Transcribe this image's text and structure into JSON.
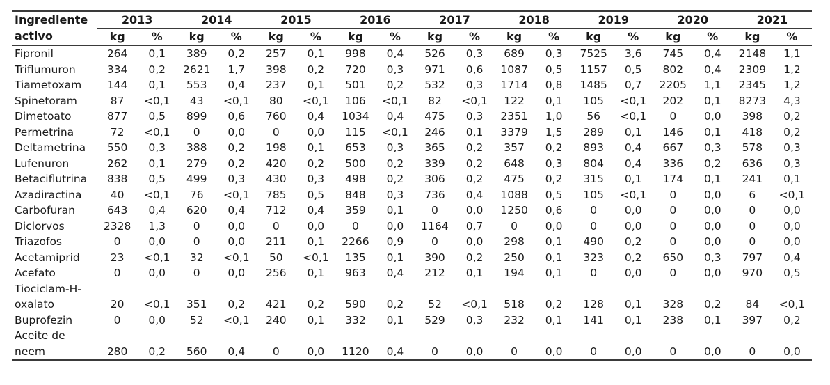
{
  "colors": {
    "background": "#ffffff",
    "text": "#1a1a1a",
    "rule": "#3a3a3a"
  },
  "chart_data": {
    "type": "table",
    "header": {
      "col1_line1": "Ingrediente",
      "col1_line2": "activo",
      "years": [
        "2013",
        "2014",
        "2015",
        "2016",
        "2017",
        "2018",
        "2019",
        "2020",
        "2021"
      ],
      "unit_kg": "kg",
      "unit_pct": "%"
    },
    "layout": {
      "gridlines": "horizontal-rules-only",
      "value_format": "comma-decimal",
      "columns_per_year": [
        "kg",
        "%"
      ]
    },
    "rows": [
      {
        "name": "Fipronil",
        "values": [
          "264",
          "0,1",
          "389",
          "0,2",
          "257",
          "0,1",
          "998",
          "0,4",
          "526",
          "0,3",
          "689",
          "0,3",
          "7525",
          "3,6",
          "745",
          "0,4",
          "2148",
          "1,1"
        ]
      },
      {
        "name": "Triflumuron",
        "values": [
          "334",
          "0,2",
          "2621",
          "1,7",
          "398",
          "0,2",
          "720",
          "0,3",
          "971",
          "0,6",
          "1087",
          "0,5",
          "1157",
          "0,5",
          "802",
          "0,4",
          "2309",
          "1,2"
        ]
      },
      {
        "name": "Tiametoxam",
        "values": [
          "144",
          "0,1",
          "553",
          "0,4",
          "237",
          "0,1",
          "501",
          "0,2",
          "532",
          "0,3",
          "1714",
          "0,8",
          "1485",
          "0,7",
          "2205",
          "1,1",
          "2345",
          "1,2"
        ]
      },
      {
        "name": "Spinetoram",
        "values": [
          "87",
          "<0,1",
          "43",
          "<0,1",
          "80",
          "<0,1",
          "106",
          "<0,1",
          "82",
          "<0,1",
          "122",
          "0,1",
          "105",
          "<0,1",
          "202",
          "0,1",
          "8273",
          "4,3"
        ]
      },
      {
        "name": "Dimetoato",
        "values": [
          "877",
          "0,5",
          "899",
          "0,6",
          "760",
          "0,4",
          "1034",
          "0,4",
          "475",
          "0,3",
          "2351",
          "1,0",
          "56",
          "<0,1",
          "0",
          "0,0",
          "398",
          "0,2"
        ]
      },
      {
        "name": "Permetrina",
        "values": [
          "72",
          "<0,1",
          "0",
          "0,0",
          "0",
          "0,0",
          "115",
          "<0,1",
          "246",
          "0,1",
          "3379",
          "1,5",
          "289",
          "0,1",
          "146",
          "0,1",
          "418",
          "0,2"
        ]
      },
      {
        "name": "Deltametrina",
        "values": [
          "550",
          "0,3",
          "388",
          "0,2",
          "198",
          "0,1",
          "653",
          "0,3",
          "365",
          "0,2",
          "357",
          "0,2",
          "893",
          "0,4",
          "667",
          "0,3",
          "578",
          "0,3"
        ]
      },
      {
        "name": "Lufenuron",
        "values": [
          "262",
          "0,1",
          "279",
          "0,2",
          "420",
          "0,2",
          "500",
          "0,2",
          "339",
          "0,2",
          "648",
          "0,3",
          "804",
          "0,4",
          "336",
          "0,2",
          "636",
          "0,3"
        ]
      },
      {
        "name": "Betaciflutrina",
        "values": [
          "838",
          "0,5",
          "499",
          "0,3",
          "430",
          "0,3",
          "498",
          "0,2",
          "306",
          "0,2",
          "475",
          "0,2",
          "315",
          "0,1",
          "174",
          "0,1",
          "241",
          "0,1"
        ]
      },
      {
        "name": "Azadiractina",
        "values": [
          "40",
          "<0,1",
          "76",
          "<0,1",
          "785",
          "0,5",
          "848",
          "0,3",
          "736",
          "0,4",
          "1088",
          "0,5",
          "105",
          "<0,1",
          "0",
          "0,0",
          "6",
          "<0,1"
        ]
      },
      {
        "name": "Carbofuran",
        "values": [
          "643",
          "0,4",
          "620",
          "0,4",
          "712",
          "0,4",
          "359",
          "0,1",
          "0",
          "0,0",
          "1250",
          "0,6",
          "0",
          "0,0",
          "0",
          "0,0",
          "0",
          "0,0"
        ]
      },
      {
        "name": "Diclorvos",
        "values": [
          "2328",
          "1,3",
          "0",
          "0,0",
          "0",
          "0,0",
          "0",
          "0,0",
          "1164",
          "0,7",
          "0",
          "0,0",
          "0",
          "0,0",
          "0",
          "0,0",
          "0",
          "0,0"
        ]
      },
      {
        "name": "Triazofos",
        "values": [
          "0",
          "0,0",
          "0",
          "0,0",
          "211",
          "0,1",
          "2266",
          "0,9",
          "0",
          "0,0",
          "298",
          "0,1",
          "490",
          "0,2",
          "0",
          "0,0",
          "0",
          "0,0"
        ]
      },
      {
        "name": "Acetamiprid",
        "values": [
          "23",
          "<0,1",
          "32",
          "<0,1",
          "50",
          "<0,1",
          "135",
          "0,1",
          "390",
          "0,2",
          "250",
          "0,1",
          "323",
          "0,2",
          "650",
          "0,3",
          "797",
          "0,4"
        ]
      },
      {
        "name": "Acefato",
        "values": [
          "0",
          "0,0",
          "0",
          "0,0",
          "256",
          "0,1",
          "963",
          "0,4",
          "212",
          "0,1",
          "194",
          "0,1",
          "0",
          "0,0",
          "0",
          "0,0",
          "970",
          "0,5"
        ]
      },
      {
        "name": "Tiociclam-H-\noxalato",
        "values": [
          "20",
          "<0,1",
          "351",
          "0,2",
          "421",
          "0,2",
          "590",
          "0,2",
          "52",
          "<0,1",
          "518",
          "0,2",
          "128",
          "0,1",
          "328",
          "0,2",
          "84",
          "<0,1"
        ]
      },
      {
        "name": "Buprofezin",
        "values": [
          "0",
          "0,0",
          "52",
          "<0,1",
          "240",
          "0,1",
          "332",
          "0,1",
          "529",
          "0,3",
          "232",
          "0,1",
          "141",
          "0,1",
          "238",
          "0,1",
          "397",
          "0,2"
        ]
      },
      {
        "name": "Aceite de\nneem",
        "values": [
          "280",
          "0,2",
          "560",
          "0,4",
          "0",
          "0,0",
          "1120",
          "0,4",
          "0",
          "0,0",
          "0",
          "0,0",
          "0",
          "0,0",
          "0",
          "0,0",
          "0",
          "0,0"
        ]
      }
    ]
  }
}
